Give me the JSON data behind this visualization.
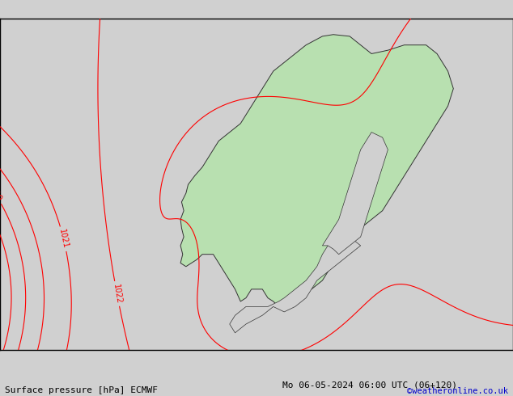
{
  "title_left": "Surface pressure [hPa] ECMWF",
  "title_right": "Mo 06-05-2024 06:00 UTC (06+120)",
  "watermark": "©weatheronline.co.uk",
  "watermark_color": "#0000cc",
  "bg_color": "#d0d0d0",
  "land_color": "#b8e0b0",
  "font_size_labels": 7,
  "font_size_title": 8,
  "lon_min": -12,
  "lon_max": 35,
  "lat_min": 53,
  "lat_max": 72,
  "figsize": [
    6.34,
    4.9
  ],
  "dpi": 100
}
